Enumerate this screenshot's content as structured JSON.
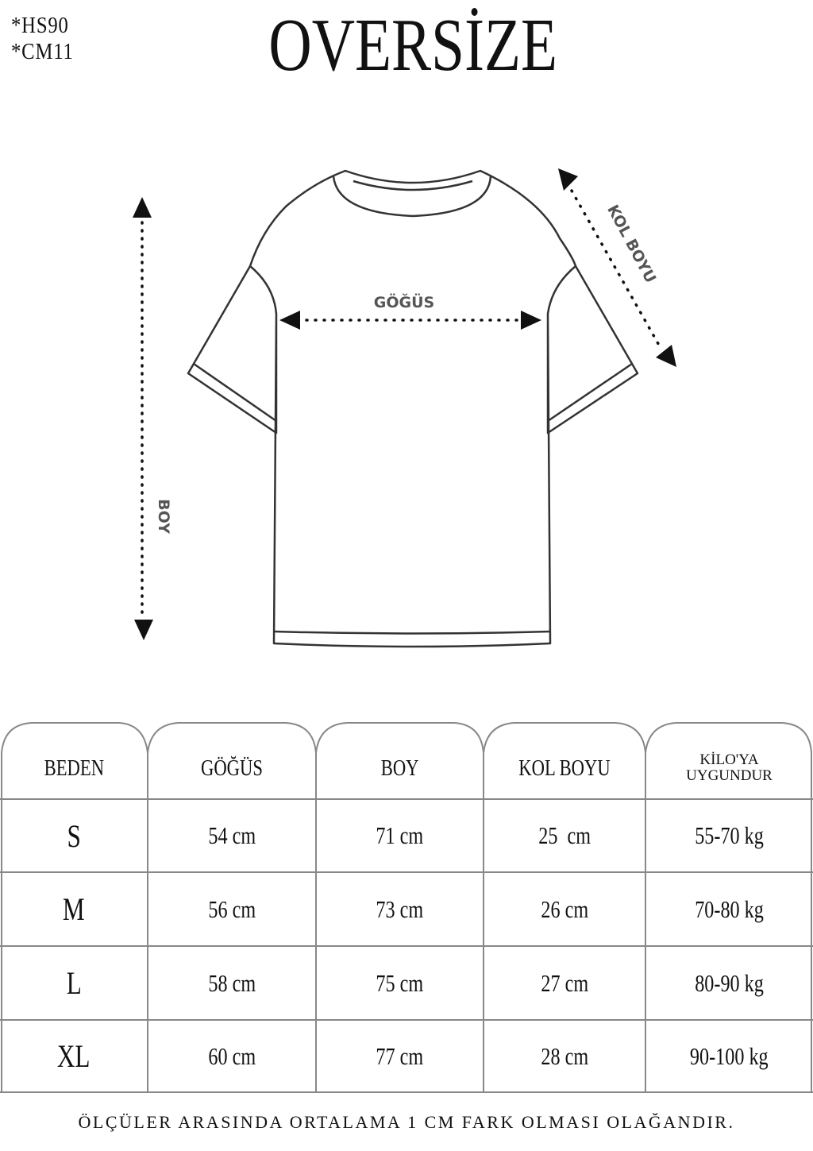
{
  "codes": [
    "*HS90",
    "*CM11"
  ],
  "title": "OVERSİZE",
  "diagram": {
    "labels": {
      "chest": "GÖĞÜS",
      "length": "BOY",
      "sleeve": "KOL BOYU"
    }
  },
  "table": {
    "headers": [
      "BEDEN",
      "GÖĞÜS",
      "BOY",
      "KOL BOYU",
      "KİLO'YA UYGUNDUR"
    ],
    "header_weight_lines": [
      "KİLO'YA",
      "UYGUNDUR"
    ],
    "rows": [
      [
        "S",
        "54 cm",
        "71 cm",
        "25  cm",
        "55-70 kg"
      ],
      [
        "M",
        "56 cm",
        "73 cm",
        "26 cm",
        "70-80 kg"
      ],
      [
        "L",
        "58 cm",
        "75 cm",
        "27 cm",
        "80-90 kg"
      ],
      [
        "XL",
        "60 cm",
        "77 cm",
        "28 cm",
        "90-100 kg"
      ]
    ]
  },
  "footer": "ÖLÇÜLER ARASINDA ORTALAMA 1 CM FARK OLMASI OLAĞANDIR."
}
